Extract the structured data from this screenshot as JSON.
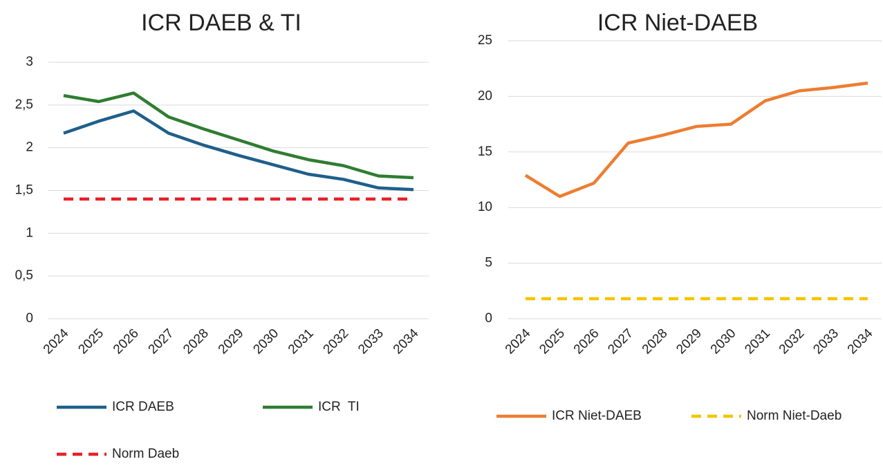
{
  "chart_data": [
    {
      "type": "line",
      "title": "ICR DAEB & TI",
      "categories": [
        "2024",
        "2025",
        "2026",
        "2027",
        "2028",
        "2029",
        "2030",
        "2031",
        "2032",
        "2033",
        "2034"
      ],
      "series": [
        {
          "name": "ICR DAEB",
          "color": "#1f5f8b",
          "values": [
            2.17,
            2.31,
            2.43,
            2.17,
            2.03,
            1.91,
            1.8,
            1.69,
            1.63,
            1.53,
            1.51
          ]
        },
        {
          "name": "ICR  TI",
          "color": "#2e7d32",
          "values": [
            2.61,
            2.54,
            2.64,
            2.36,
            2.22,
            2.09,
            1.96,
            1.86,
            1.79,
            1.67,
            1.65
          ]
        },
        {
          "name": "Norm Daeb",
          "color": "#e8202a",
          "dashed": true,
          "values": [
            1.4,
            1.4,
            1.4,
            1.4,
            1.4,
            1.4,
            1.4,
            1.4,
            1.4,
            1.4,
            1.4
          ]
        }
      ],
      "ylim": [
        0,
        3
      ],
      "yticks": [
        0,
        {
          "value": 0.5,
          "label": "0,5"
        },
        1,
        {
          "value": 1.5,
          "label": "1,5"
        },
        2,
        {
          "value": 2.5,
          "label": "2,5"
        },
        3
      ],
      "grid": true
    },
    {
      "type": "line",
      "title": "ICR Niet-DAEB",
      "categories": [
        "2024",
        "2025",
        "2026",
        "2027",
        "2028",
        "2029",
        "2030",
        "2031",
        "2032",
        "2033",
        "2034"
      ],
      "series": [
        {
          "name": "ICR Niet-DAEB",
          "color": "#ed7d31",
          "values": [
            12.9,
            11.0,
            12.2,
            15.8,
            16.5,
            17.3,
            17.5,
            19.6,
            20.5,
            20.8,
            21.2
          ]
        },
        {
          "name": "Norm Niet-Daeb",
          "color": "#f5c400",
          "dashed": true,
          "values": [
            1.8,
            1.8,
            1.8,
            1.8,
            1.8,
            1.8,
            1.8,
            1.8,
            1.8,
            1.8,
            1.8
          ]
        }
      ],
      "ylim": [
        0,
        25
      ],
      "yticks": [
        0,
        5,
        10,
        15,
        20,
        25
      ],
      "grid": true
    }
  ]
}
